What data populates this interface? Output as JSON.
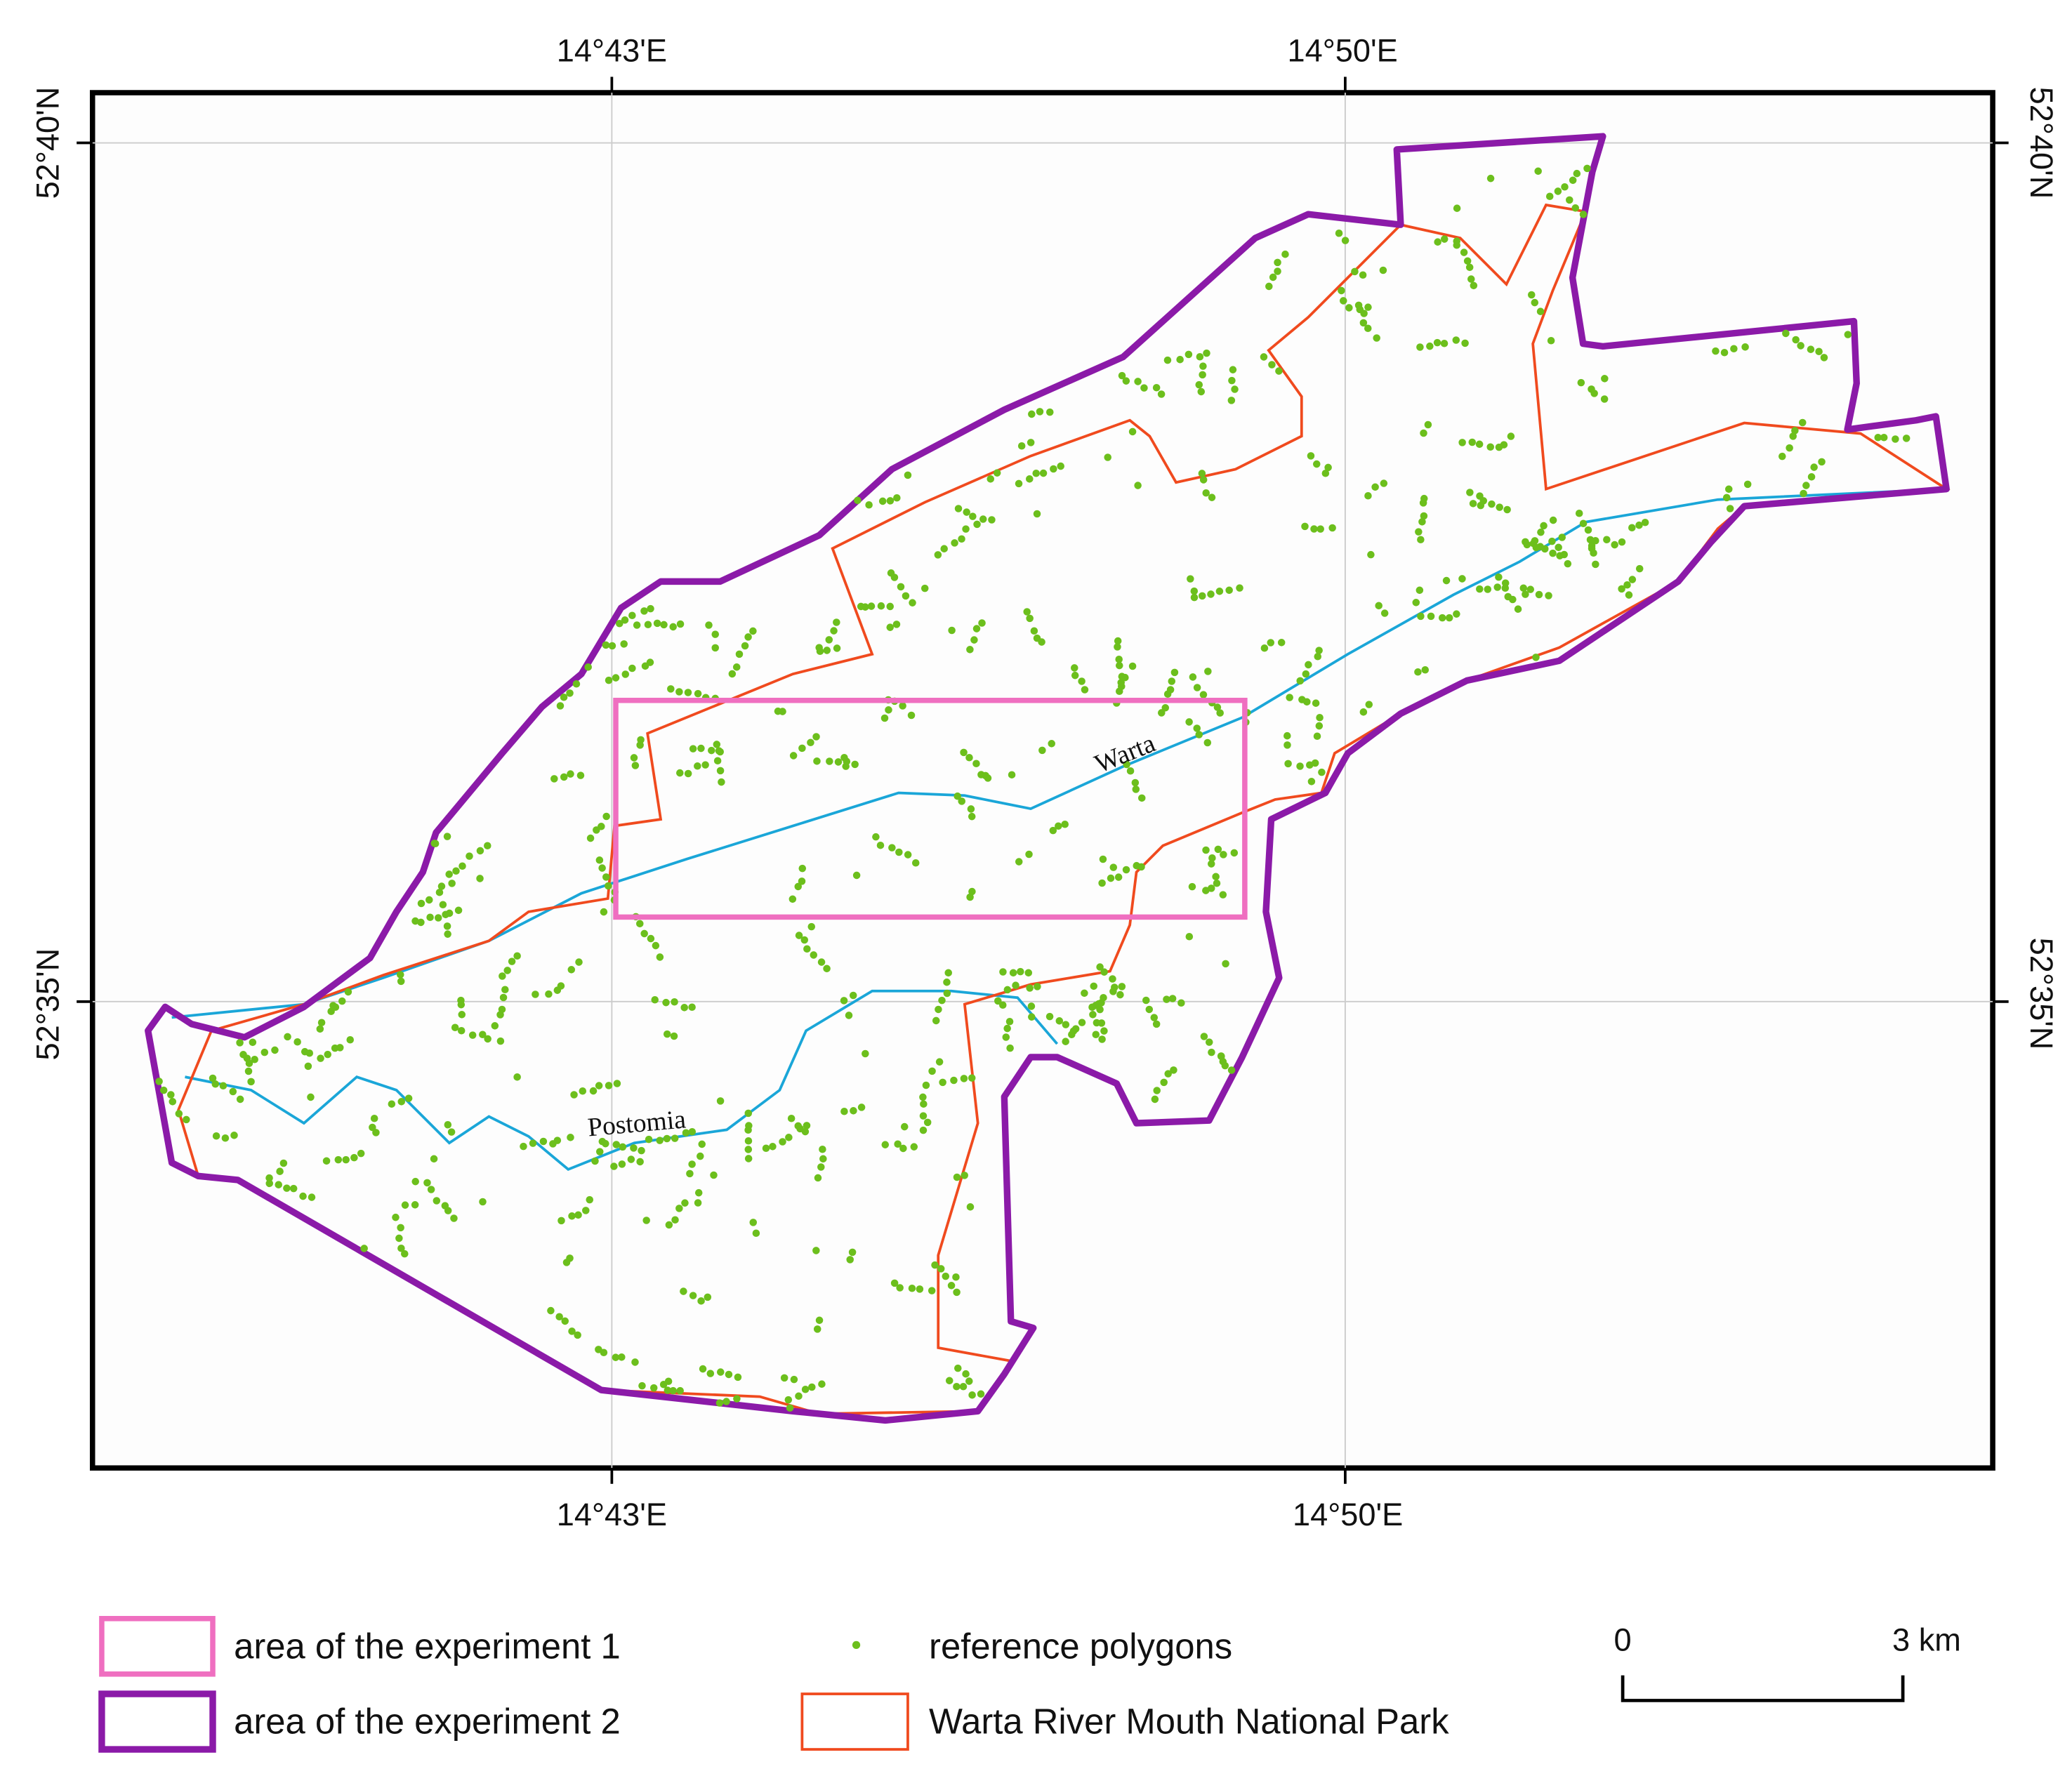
{
  "map": {
    "x_labels_top": [
      "14°43'E",
      "14°50'E"
    ],
    "x_labels_bottom": [
      "14°43'E",
      "14°50'E"
    ],
    "y_labels_left": [
      "52°40'N",
      "52°35'N"
    ],
    "y_labels_right": [
      "52°40'N",
      "52°35'N"
    ],
    "rivers": [
      "Warta",
      "Postomia"
    ],
    "legend": [
      "area of the experiment 1",
      "area of the experiment 2",
      "reference polygons",
      "Warta River Mouth National Park"
    ],
    "scale_bar": [
      "0",
      "3 km"
    ]
  }
}
